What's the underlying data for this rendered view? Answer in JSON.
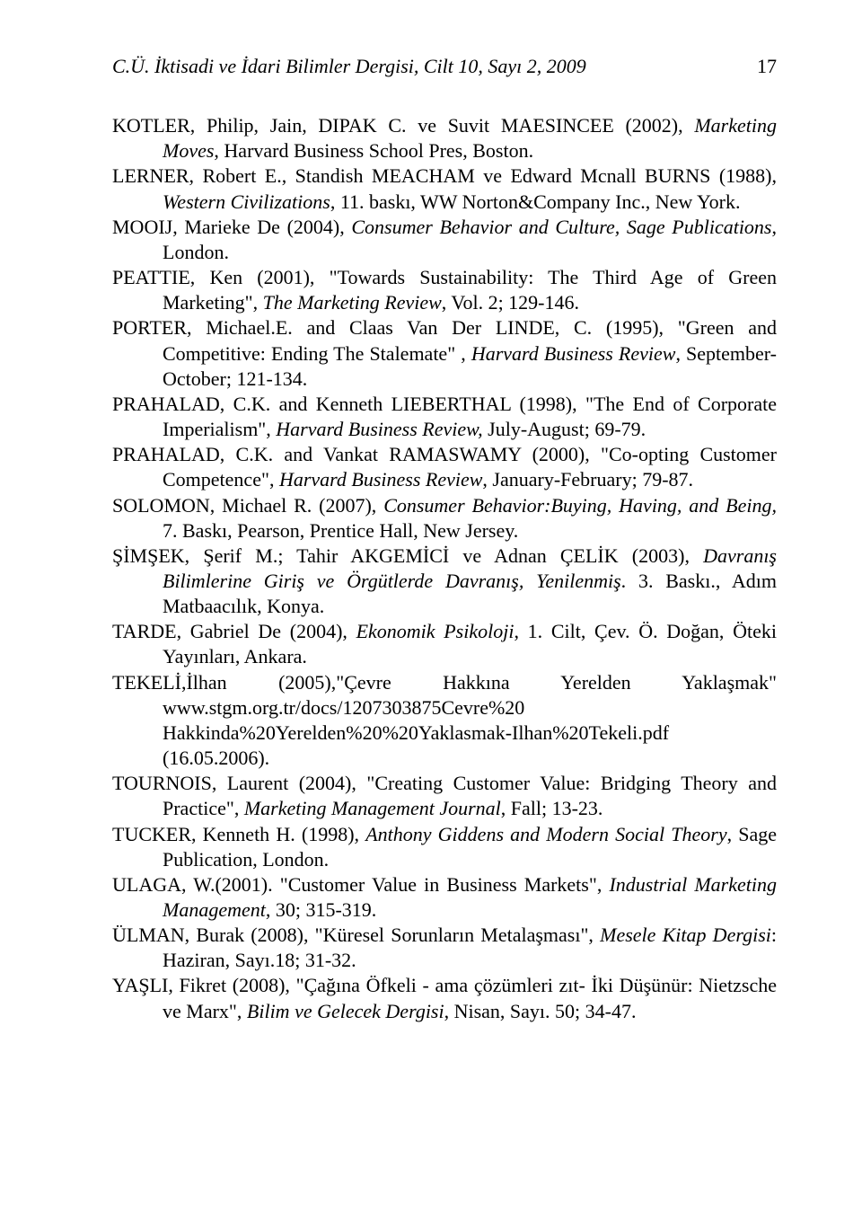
{
  "header": {
    "journal": "C.Ü. İktisadi ve İdari Bilimler Dergisi, Cilt 10, Sayı 2, 2009",
    "page": "17"
  },
  "refs": [
    "KOTLER, Philip, Jain, DIPAK C. ve Suvit MAESINCEE (2002), <span class=\"i\">Marketing Moves</span>, Harvard Business School Pres, Boston.",
    "LERNER, Robert E., Standish MEACHAM ve Edward Mcnall BURNS (1988), <span class=\"i\">Western Civilizations</span>, 11. baskı, WW Norton&amp;Company Inc., New York.",
    "MOOIJ, Marieke De (2004), <span class=\"i\">Consumer Behavior and Culture, Sage Publications</span>, London.",
    "PEATTIE, Ken (2001),  \"Towards Sustainability: The Third Age of Green Marketing\", <span class=\"i\">The Marketing Review</span>, Vol. 2; 129-146.",
    "PORTER, Michael.E. and Claas Van Der LINDE, C. (1995), \"Green and Competitive: Ending The Stalemate\" , <span class=\"i\">Harvard Business Review</span>, September-October; 121-134.",
    "PRAHALAD, C.K. and Kenneth LIEBERTHAL (1998), \"The End of Corporate Imperialism\", <span class=\"i\">Harvard Business Review,</span> July-August; 69-79.",
    "PRAHALAD, C.K. and Vankat RAMASWAMY (2000), \"Co-opting Customer Competence\", <span class=\"i\">Harvard Business Review</span>, January-February; 79-87.",
    "SOLOMON, Michael R. (2007), <span class=\"i\">Consumer Behavior:Buying, Having, and Being,</span> 7. Baskı, Pearson, Prentice Hall, New Jersey.",
    "ŞİMŞEK, Şerif M.; Tahir AKGEMİCİ ve Adnan ÇELİK (2003), <span class=\"i\">Davranış Bilimlerine Giriş ve Örgütlerde Davranış, Yenilenmiş</span>. 3. Baskı., Adım Matbaacılık, Konya.",
    "TARDE, Gabriel De (2004), <span class=\"i\">Ekonomik Psikoloji</span>, 1. Cilt, Çev. Ö. Doğan, Öteki Yayınları, Ankara.",
    "TEKELİ,İlhan (2005),\"Çevre Hakkına Yerelden Yaklaşmak\" www.stgm.org.tr/docs/1207303875Cevre%20 Hakkinda%20Yerelden%20%20Yaklasmak-Ilhan%20Tekeli.pdf (16.05.2006).",
    "TOURNOIS, Laurent  (2004), \"Creating Customer Value: Bridging Theory and Practice\", <span class=\"i\">Marketing Management Journal</span>, Fall;  13-23.",
    "TUCKER, Kenneth H.  (1998), <span class=\"i\">Anthony Giddens and Modern Social Theory</span>, Sage Publication, London.",
    "ULAGA, W.(2001). \"Customer Value in Business Markets\", <span class=\"i\">Industrial Marketing Management</span>, 30; 315-319.",
    "ÜLMAN, Burak (2008), \"Küresel Sorunların Metalaşması\", <span class=\"i\">Mesele Kitap Dergisi</span>: Haziran, Sayı.18; 31-32.",
    "YAŞLI, Fikret (2008), \"Çağına Öfkeli - ama çözümleri zıt- İki Düşünür: Nietzsche ve Marx\", <span class=\"i\">Bilim ve Gelecek Dergisi</span>, Nisan, Sayı. 50; 34-47."
  ]
}
